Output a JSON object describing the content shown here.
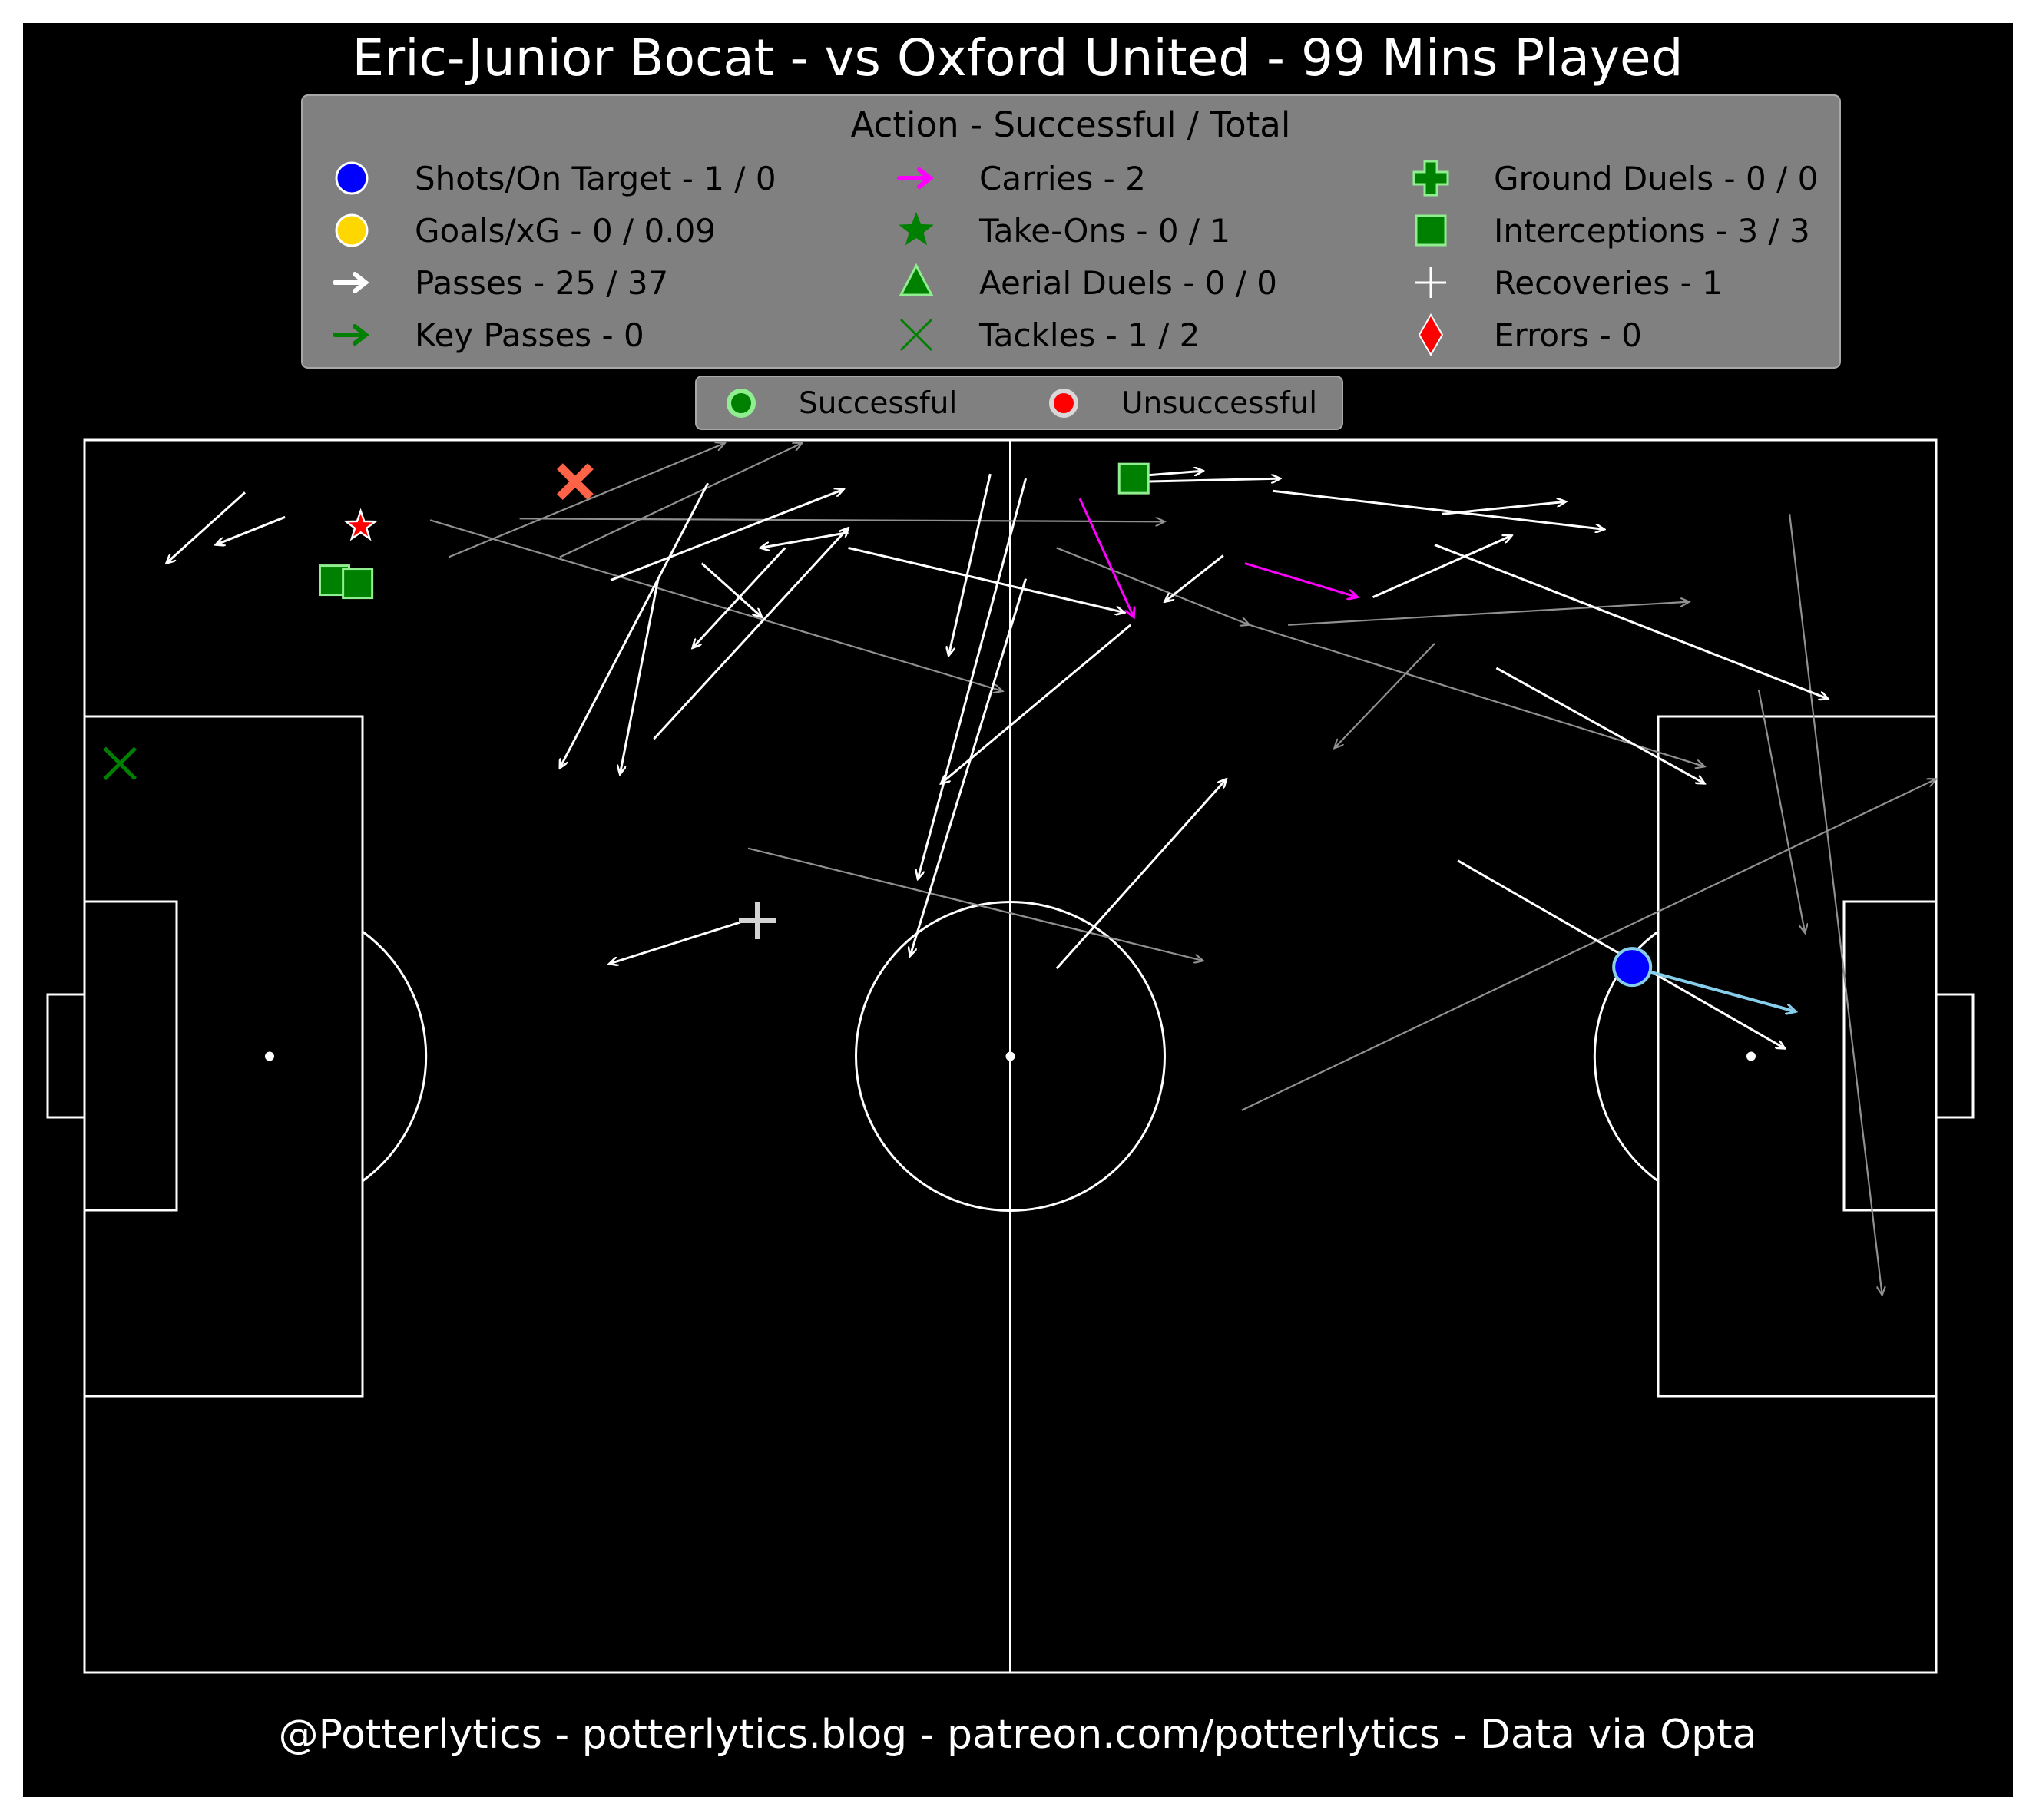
{
  "title": "Eric-Junior Bocat - vs Oxford United - 99 Mins Played",
  "footer": "@Potterlytics - potterlytics.blog - patreon.com/potterlytics - Data via Opta",
  "legend": {
    "title": "Action - Successful / Total",
    "items": [
      {
        "key": "shots",
        "label": "Shots/On Target - 1 / 0",
        "icon": "circle",
        "color": "#0000ff"
      },
      {
        "key": "goals",
        "label": "Goals/xG - 0 / 0.09",
        "icon": "circle",
        "color": "#ffd700"
      },
      {
        "key": "passes",
        "label": "Passes - 25 / 37",
        "icon": "arrow",
        "color": "#ffffff"
      },
      {
        "key": "key_passes",
        "label": "Key Passes - 0",
        "icon": "arrow",
        "color": "#008000"
      },
      {
        "key": "carries",
        "label": "Carries - 2",
        "icon": "arrow",
        "color": "#ff00ff"
      },
      {
        "key": "take_ons",
        "label": "Take-Ons - 0 / 1",
        "icon": "star",
        "color": "#008000"
      },
      {
        "key": "aerial",
        "label": "Aerial Duels - 0 / 0",
        "icon": "triangle",
        "color": "#008000"
      },
      {
        "key": "tackles",
        "label": "Tackles - 1 / 2",
        "icon": "x",
        "color": "#008000"
      },
      {
        "key": "ground",
        "label": "Ground Duels - 0 / 0",
        "icon": "plus",
        "color": "#008000"
      },
      {
        "key": "interceptions",
        "label": "Interceptions - 3 / 3",
        "icon": "square",
        "color": "#008000"
      },
      {
        "key": "recoveries",
        "label": "Recoveries - 1",
        "icon": "thin-plus",
        "color": "#ffffff"
      },
      {
        "key": "errors",
        "label": "Errors - 0",
        "icon": "diamond",
        "color": "#ff0000"
      }
    ]
  },
  "status_legend": {
    "successful": "Successful",
    "unsuccessful": "Unsuccessful"
  },
  "colors": {
    "background": "#000000",
    "panel": "#808080",
    "pitch_lines": "#ffffff",
    "successful_pass": "#ffffff",
    "unsuccessful_pass": "#909090",
    "carry": "#ff00ff",
    "shot_line": "#87ceeb",
    "tackle_lost": "#ff6347",
    "interception": "#008000"
  },
  "chart_data": {
    "type": "scatter",
    "pitch": {
      "length": 120,
      "width": 80,
      "attacking_direction": "right"
    },
    "passes_successful": [
      [
        10.4,
        3.4,
        5.3,
        8.0
      ],
      [
        13.0,
        5.0,
        8.5,
        6.8
      ],
      [
        34.1,
        9.1,
        49.2,
        3.2
      ],
      [
        40.4,
        2.8,
        30.8,
        21.3
      ],
      [
        40.0,
        8.0,
        43.9,
        11.5
      ],
      [
        45.4,
        7.0,
        39.4,
        13.5
      ],
      [
        36.9,
        19.4,
        49.5,
        5.7
      ],
      [
        37.2,
        8.9,
        34.7,
        21.7
      ],
      [
        49.5,
        6.0,
        43.8,
        7.0
      ],
      [
        49.5,
        7.0,
        67.4,
        11.2
      ],
      [
        58.7,
        2.2,
        56.0,
        14.0
      ],
      [
        61.0,
        2.5,
        54.0,
        28.5
      ],
      [
        61.0,
        9.0,
        53.5,
        33.5
      ],
      [
        68.7,
        2.3,
        72.5,
        2.0
      ],
      [
        68.7,
        2.7,
        77.5,
        2.5
      ],
      [
        67.8,
        12.0,
        55.5,
        22.3
      ],
      [
        73.8,
        7.5,
        70.0,
        10.5
      ],
      [
        63.0,
        34.3,
        74.0,
        22.0
      ],
      [
        42.5,
        31.3,
        34.0,
        34.0
      ],
      [
        77.0,
        3.3,
        98.5,
        5.8
      ],
      [
        88.0,
        4.8,
        96.0,
        4.0
      ],
      [
        83.5,
        10.2,
        92.5,
        6.2
      ],
      [
        87.5,
        6.8,
        113.0,
        16.8
      ],
      [
        91.5,
        14.8,
        105.0,
        22.3
      ],
      [
        89.0,
        27.3,
        110.2,
        39.5
      ]
    ],
    "passes_unsuccessful": [
      [
        23.6,
        7.6,
        41.5,
        0.2
      ],
      [
        30.8,
        7.6,
        46.5,
        0.2
      ],
      [
        28.2,
        5.1,
        70.0,
        5.3
      ],
      [
        22.4,
        5.2,
        59.5,
        16.3
      ],
      [
        43.0,
        26.5,
        72.5,
        33.8
      ],
      [
        63.0,
        7.0,
        75.5,
        12.0
      ],
      [
        75.5,
        12.0,
        105.0,
        21.2
      ],
      [
        78.0,
        12.0,
        104.0,
        10.5
      ],
      [
        87.5,
        13.2,
        81.0,
        20.0
      ],
      [
        75.0,
        43.5,
        120.0,
        22.0
      ],
      [
        108.5,
        16.2,
        111.5,
        32.0
      ],
      [
        110.5,
        4.8,
        116.5,
        55.5
      ]
    ],
    "carries": [
      [
        64.5,
        3.8,
        68.0,
        11.5
      ],
      [
        75.2,
        8.0,
        82.5,
        10.2
      ]
    ],
    "shots": [
      {
        "x": 100.3,
        "y": 34.2,
        "end_x": 110.9,
        "end_y": 37.1,
        "on_target": false
      }
    ],
    "tackles": [
      {
        "x": 2.3,
        "y": 21.0,
        "successful": true
      },
      {
        "x": 31.8,
        "y": 2.7,
        "successful": false
      }
    ],
    "interceptions": [
      {
        "x": 16.2,
        "y": 9.1,
        "successful": true
      },
      {
        "x": 17.7,
        "y": 9.3,
        "successful": true
      },
      {
        "x": 68.0,
        "y": 2.5,
        "successful": true
      }
    ],
    "take_ons": [
      {
        "x": 17.9,
        "y": 5.6,
        "successful": false
      }
    ],
    "recoveries": [
      {
        "x": 43.6,
        "y": 31.2
      }
    ]
  }
}
